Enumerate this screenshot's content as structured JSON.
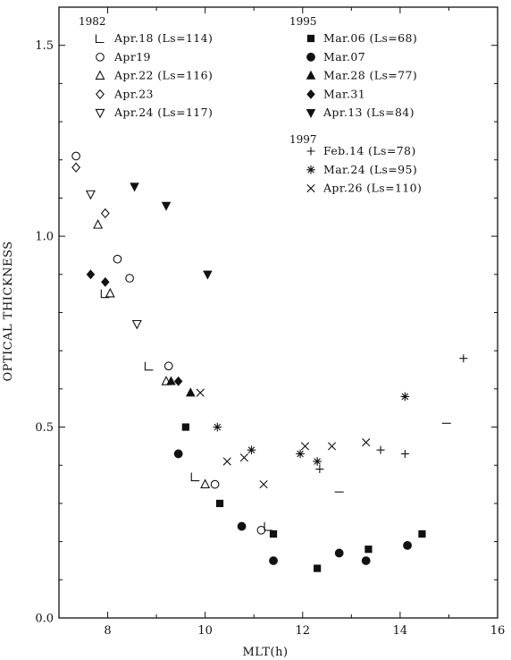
{
  "chart_data": {
    "type": "scatter",
    "xlabel": "MLT(h)",
    "ylabel": "OPTICAL THICKNESS",
    "xlim": [
      7,
      16
    ],
    "ylim": [
      0,
      1.6
    ],
    "x_ticks": [
      8,
      10,
      12,
      14,
      16
    ],
    "y_ticks": [
      0.0,
      0.5,
      1.0,
      1.5
    ],
    "x_tick_labels": [
      "8",
      "10",
      "12",
      "14",
      "16"
    ],
    "y_tick_labels": [
      "0.0",
      "0.5",
      "1.0",
      "1.5"
    ],
    "grid": false,
    "legend_groups": [
      {
        "year": "1982",
        "placement": "top-left",
        "series": [
          {
            "name": "Apr.18 (Ls=114)",
            "marker": "corner",
            "points": [
              [
                7.95,
                0.85
              ],
              [
                8.85,
                0.66
              ],
              [
                9.8,
                0.37
              ],
              [
                11.3,
                0.24
              ]
            ]
          },
          {
            "name": "Apr19",
            "marker": "circle-open",
            "points": [
              [
                7.35,
                1.21
              ],
              [
                8.2,
                0.94
              ],
              [
                8.45,
                0.89
              ],
              [
                9.25,
                0.66
              ],
              [
                10.2,
                0.35
              ],
              [
                11.15,
                0.23
              ]
            ]
          },
          {
            "name": "Apr.22 (Ls=116)",
            "marker": "triangle-up-open",
            "points": [
              [
                7.8,
                1.03
              ],
              [
                8.05,
                0.85
              ],
              [
                9.2,
                0.62
              ],
              [
                10.0,
                0.35
              ]
            ]
          },
          {
            "name": "Apr.23",
            "marker": "diamond-open",
            "points": [
              [
                7.35,
                1.18
              ],
              [
                7.95,
                1.06
              ]
            ]
          },
          {
            "name": "Apr.24 (Ls=117)",
            "marker": "triangle-down-open",
            "points": [
              [
                7.65,
                1.11
              ],
              [
                8.6,
                0.77
              ]
            ]
          }
        ]
      },
      {
        "year": "1995",
        "placement": "top-right",
        "series": [
          {
            "name": "Mar.06 (Ls=68)",
            "marker": "square-filled",
            "points": [
              [
                9.6,
                0.5
              ],
              [
                10.3,
                0.3
              ],
              [
                11.4,
                0.22
              ],
              [
                12.3,
                0.13
              ],
              [
                13.35,
                0.18
              ],
              [
                14.45,
                0.22
              ]
            ]
          },
          {
            "name": "Mar.07",
            "marker": "circle-filled",
            "points": [
              [
                9.45,
                0.43
              ],
              [
                10.75,
                0.24
              ],
              [
                11.4,
                0.15
              ],
              [
                12.75,
                0.17
              ],
              [
                13.3,
                0.15
              ],
              [
                14.15,
                0.19
              ]
            ]
          },
          {
            "name": "Mar.28 (Ls=77)",
            "marker": "triangle-up-filled",
            "points": [
              [
                9.3,
                0.62
              ],
              [
                9.7,
                0.59
              ]
            ]
          },
          {
            "name": "Mar.31",
            "marker": "diamond-filled",
            "points": [
              [
                7.65,
                0.9
              ],
              [
                7.95,
                0.88
              ],
              [
                9.45,
                0.62
              ]
            ]
          },
          {
            "name": "Apr.13 (Ls=84)",
            "marker": "triangle-down-filled",
            "points": [
              [
                8.55,
                1.13
              ],
              [
                9.2,
                1.08
              ],
              [
                10.05,
                0.9
              ]
            ]
          }
        ]
      },
      {
        "year": "1997",
        "placement": "top-right",
        "series": [
          {
            "name": "Feb.14 (Ls=78)",
            "marker": "plus",
            "points": [
              [
                12.35,
                0.39
              ],
              [
                13.6,
                0.44
              ],
              [
                14.1,
                0.43
              ],
              [
                15.3,
                0.68
              ]
            ]
          },
          {
            "name": "Mar.24 (Ls=95)",
            "marker": "asterisk",
            "points": [
              [
                10.25,
                0.5
              ],
              [
                10.95,
                0.44
              ],
              [
                11.95,
                0.43
              ],
              [
                12.3,
                0.41
              ],
              [
                14.1,
                0.58
              ]
            ]
          },
          {
            "name": "Apr.26 (Ls=110)",
            "marker": "cross",
            "points": [
              [
                9.9,
                0.59
              ],
              [
                10.45,
                0.41
              ],
              [
                10.8,
                0.42
              ],
              [
                11.2,
                0.35
              ],
              [
                12.05,
                0.45
              ],
              [
                12.6,
                0.45
              ],
              [
                13.3,
                0.46
              ]
            ]
          }
        ]
      }
    ],
    "unlabeled_marks": [
      {
        "marker": "dash",
        "points": [
          [
            12.75,
            0.33
          ],
          [
            14.95,
            0.51
          ]
        ]
      }
    ]
  }
}
